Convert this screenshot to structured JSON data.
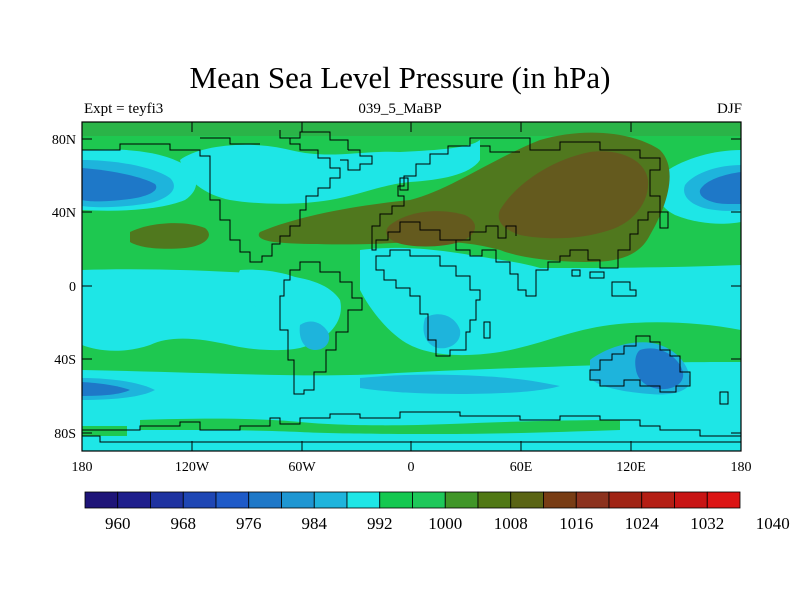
{
  "title": "Mean Sea Level Pressure (in hPa)",
  "subtitle_left": "Expt = teyfi3",
  "subtitle_center": "039_5_MaBP",
  "subtitle_right": "DJF",
  "lat_labels": [
    "80N",
    "40N",
    "0",
    "40S",
    "80S"
  ],
  "lon_labels": [
    "180",
    "120W",
    "60W",
    "0",
    "60E",
    "120E",
    "180"
  ],
  "colorbar": {
    "colors": [
      "#1e1478",
      "#1e1e8c",
      "#1e32a0",
      "#1e46b4",
      "#1e5ac8",
      "#1e78c8",
      "#1e96d2",
      "#1eb4dc",
      "#1ee6e6",
      "#14c850",
      "#1ec85a",
      "#409628",
      "#507814",
      "#5a6414",
      "#783c14",
      "#8c321e",
      "#a02314",
      "#b41e14",
      "#c81414",
      "#dc1414"
    ],
    "labels": [
      "960",
      "968",
      "976",
      "984",
      "992",
      "1000",
      "1008",
      "1016",
      "1024",
      "1032",
      "1040"
    ]
  },
  "map": {
    "colors": {
      "green": "#1ec850",
      "cyan": "#1ee6e6",
      "lightblue": "#1eb4dc",
      "midblue": "#1e96d2",
      "deepblue": "#1e78c8",
      "olive": "#50781e",
      "brown": "#645a1e",
      "outline": "#000000"
    }
  }
}
